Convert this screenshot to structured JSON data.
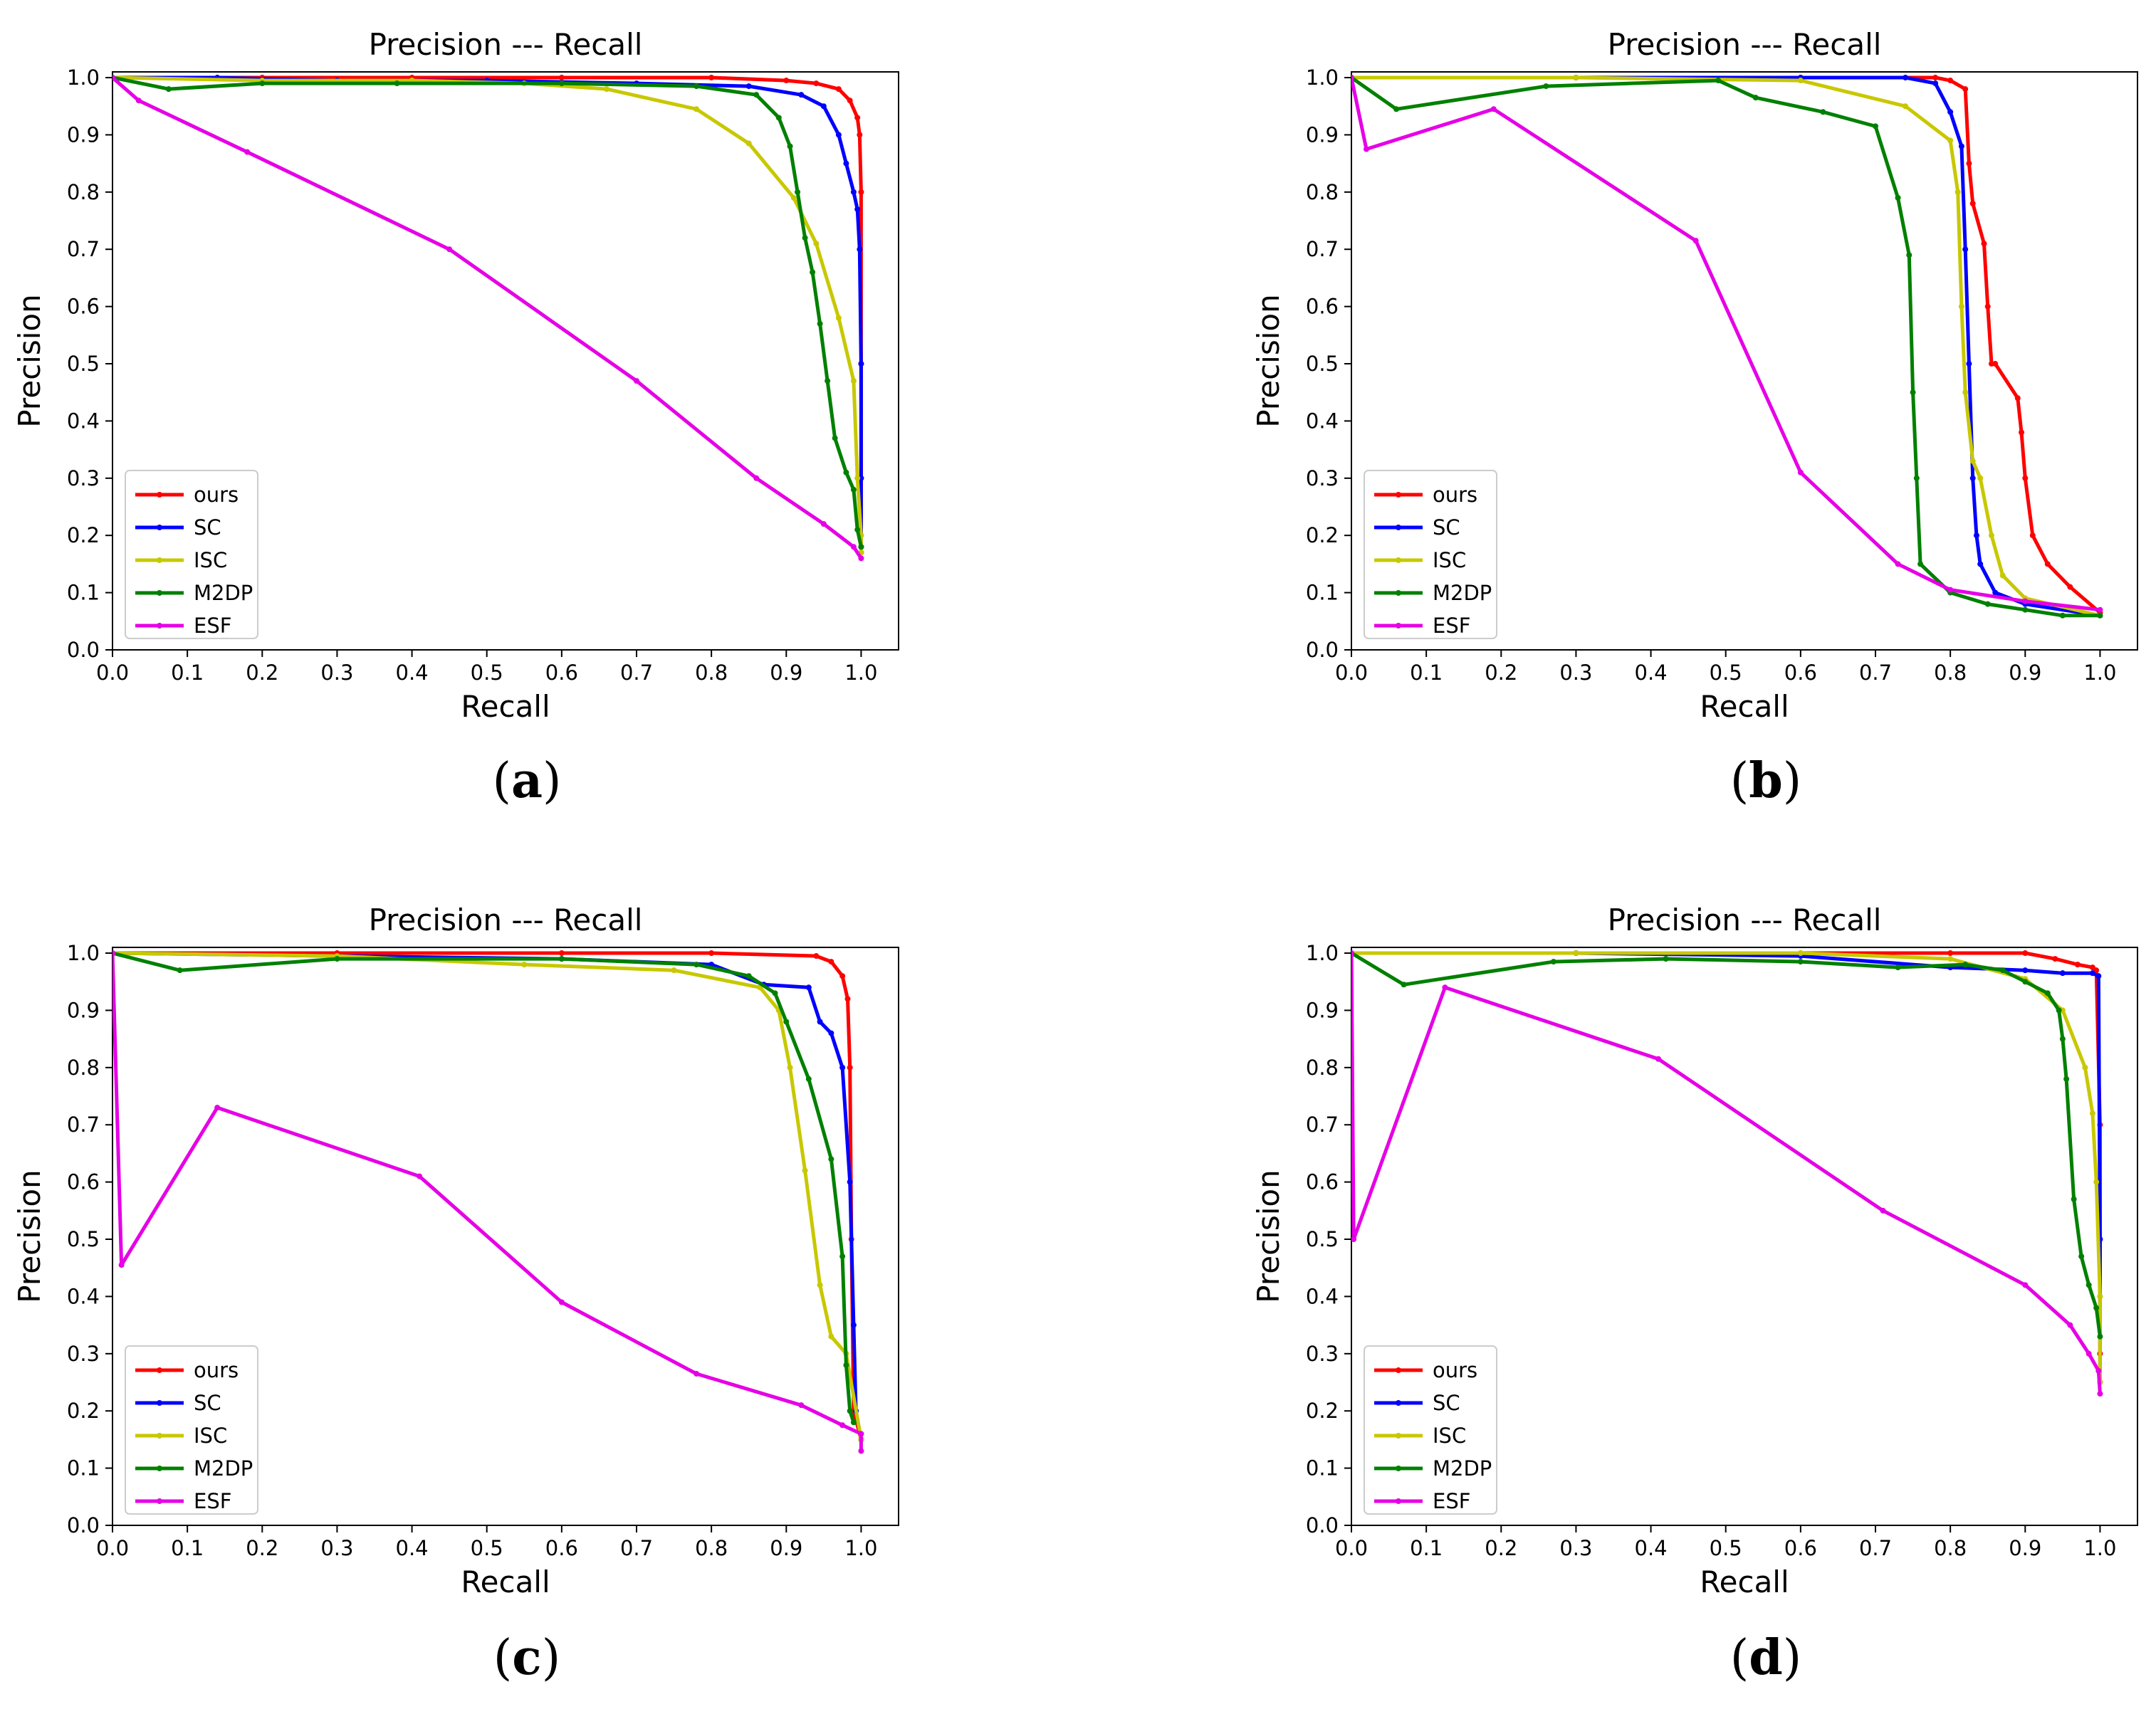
{
  "figure": {
    "caption_open": "(",
    "caption_close": ")"
  },
  "chart_data": [
    {
      "type": "line",
      "panel": "a",
      "title": "Precision --- Recall",
      "xlabel": "Recall",
      "ylabel": "Precision",
      "xlim": [
        0,
        1.05
      ],
      "ylim": [
        0,
        1.01
      ],
      "xticks": [
        "0.0",
        "0.1",
        "0.2",
        "0.3",
        "0.4",
        "0.5",
        "0.6",
        "0.7",
        "0.8",
        "0.9",
        "1.0"
      ],
      "yticks": [
        "0.0",
        "0.1",
        "0.2",
        "0.3",
        "0.4",
        "0.5",
        "0.6",
        "0.7",
        "0.8",
        "0.9",
        "1.0"
      ],
      "legend_position": "lower-left",
      "series": [
        {
          "name": "ours",
          "color": "#ff0000",
          "x": [
            0,
            0.2,
            0.4,
            0.6,
            0.8,
            0.9,
            0.94,
            0.97,
            0.985,
            0.995,
            0.998,
            1.0,
            1.0,
            1.0
          ],
          "y": [
            1.0,
            1.0,
            1.0,
            1.0,
            1.0,
            0.995,
            0.99,
            0.98,
            0.96,
            0.93,
            0.9,
            0.8,
            0.5,
            0.17
          ]
        },
        {
          "name": "SC",
          "color": "#0000ff",
          "x": [
            0,
            0.14,
            0.3,
            0.5,
            0.7,
            0.85,
            0.92,
            0.95,
            0.97,
            0.98,
            0.99,
            0.995,
            0.998,
            1.0,
            1.0,
            1.0
          ],
          "y": [
            1.0,
            1.0,
            0.995,
            0.995,
            0.99,
            0.985,
            0.97,
            0.95,
            0.9,
            0.85,
            0.8,
            0.77,
            0.7,
            0.5,
            0.3,
            0.18
          ]
        },
        {
          "name": "ISC",
          "color": "#c8c800",
          "x": [
            0,
            0.2,
            0.4,
            0.55,
            0.66,
            0.78,
            0.85,
            0.91,
            0.94,
            0.97,
            0.99,
            0.995,
            1.0,
            1.0
          ],
          "y": [
            1.0,
            0.995,
            0.995,
            0.99,
            0.98,
            0.945,
            0.885,
            0.79,
            0.71,
            0.58,
            0.47,
            0.3,
            0.2,
            0.17
          ]
        },
        {
          "name": "M2DP",
          "color": "#008000",
          "x": [
            0,
            0.075,
            0.2,
            0.38,
            0.6,
            0.78,
            0.86,
            0.89,
            0.905,
            0.915,
            0.925,
            0.935,
            0.945,
            0.955,
            0.965,
            0.98,
            0.99,
            0.995,
            1.0
          ],
          "y": [
            1.0,
            0.98,
            0.99,
            0.99,
            0.99,
            0.985,
            0.97,
            0.93,
            0.88,
            0.8,
            0.72,
            0.66,
            0.57,
            0.47,
            0.37,
            0.31,
            0.28,
            0.21,
            0.18
          ]
        },
        {
          "name": "ESF",
          "color": "#e600e6",
          "x": [
            0,
            0.035,
            0.18,
            0.45,
            0.7,
            0.86,
            0.95,
            0.99,
            1.0
          ],
          "y": [
            1.0,
            0.96,
            0.87,
            0.7,
            0.47,
            0.3,
            0.22,
            0.18,
            0.16
          ]
        }
      ]
    },
    {
      "type": "line",
      "panel": "b",
      "title": "Precision --- Recall",
      "xlabel": "Recall",
      "ylabel": "Precision",
      "xlim": [
        0,
        1.05
      ],
      "ylim": [
        0,
        1.01
      ],
      "xticks": [
        "0.0",
        "0.1",
        "0.2",
        "0.3",
        "0.4",
        "0.5",
        "0.6",
        "0.7",
        "0.8",
        "0.9",
        "1.0"
      ],
      "yticks": [
        "0.0",
        "0.1",
        "0.2",
        "0.3",
        "0.4",
        "0.5",
        "0.6",
        "0.7",
        "0.8",
        "0.9",
        "1.0"
      ],
      "legend_position": "lower-left",
      "series": [
        {
          "name": "ours",
          "color": "#ff0000",
          "x": [
            0,
            0.3,
            0.6,
            0.78,
            0.8,
            0.82,
            0.825,
            0.83,
            0.845,
            0.85,
            0.855,
            0.86,
            0.89,
            0.895,
            0.9,
            0.91,
            0.93,
            0.96,
            1.0
          ],
          "y": [
            1.0,
            1.0,
            1.0,
            1.0,
            0.995,
            0.98,
            0.85,
            0.78,
            0.71,
            0.6,
            0.5,
            0.5,
            0.44,
            0.38,
            0.3,
            0.2,
            0.15,
            0.11,
            0.065
          ]
        },
        {
          "name": "SC",
          "color": "#0000ff",
          "x": [
            0,
            0.3,
            0.6,
            0.74,
            0.78,
            0.8,
            0.815,
            0.82,
            0.825,
            0.83,
            0.835,
            0.84,
            0.86,
            0.9,
            1.0
          ],
          "y": [
            1.0,
            1.0,
            1.0,
            1.0,
            0.99,
            0.94,
            0.88,
            0.7,
            0.5,
            0.3,
            0.2,
            0.15,
            0.1,
            0.08,
            0.06
          ]
        },
        {
          "name": "ISC",
          "color": "#c8c800",
          "x": [
            0,
            0.3,
            0.6,
            0.74,
            0.8,
            0.81,
            0.815,
            0.82,
            0.83,
            0.84,
            0.855,
            0.87,
            0.9,
            1.0
          ],
          "y": [
            1.0,
            1.0,
            0.995,
            0.95,
            0.89,
            0.8,
            0.6,
            0.45,
            0.33,
            0.3,
            0.2,
            0.13,
            0.09,
            0.06
          ]
        },
        {
          "name": "M2DP",
          "color": "#008000",
          "x": [
            0,
            0.06,
            0.26,
            0.49,
            0.54,
            0.63,
            0.7,
            0.73,
            0.745,
            0.75,
            0.755,
            0.76,
            0.8,
            0.85,
            0.9,
            0.95,
            1.0
          ],
          "y": [
            1.0,
            0.945,
            0.985,
            0.995,
            0.965,
            0.94,
            0.915,
            0.79,
            0.69,
            0.45,
            0.3,
            0.15,
            0.1,
            0.08,
            0.07,
            0.06,
            0.06
          ]
        },
        {
          "name": "ESF",
          "color": "#e600e6",
          "x": [
            0,
            0.02,
            0.19,
            0.46,
            0.6,
            0.73,
            0.8,
            0.9,
            1.0
          ],
          "y": [
            1.0,
            0.875,
            0.945,
            0.715,
            0.31,
            0.15,
            0.105,
            0.085,
            0.07
          ]
        }
      ]
    },
    {
      "type": "line",
      "panel": "c",
      "title": "Precision --- Recall",
      "xlabel": "Recall",
      "ylabel": "Precision",
      "xlim": [
        0,
        1.05
      ],
      "ylim": [
        0,
        1.01
      ],
      "xticks": [
        "0.0",
        "0.1",
        "0.2",
        "0.3",
        "0.4",
        "0.5",
        "0.6",
        "0.7",
        "0.8",
        "0.9",
        "1.0"
      ],
      "yticks": [
        "0.0",
        "0.1",
        "0.2",
        "0.3",
        "0.4",
        "0.5",
        "0.6",
        "0.7",
        "0.8",
        "0.9",
        "1.0"
      ],
      "legend_position": "lower-left",
      "series": [
        {
          "name": "ours",
          "color": "#ff0000",
          "x": [
            0,
            0.3,
            0.6,
            0.8,
            0.94,
            0.96,
            0.975,
            0.982,
            0.985,
            0.987,
            0.99,
            1.0
          ],
          "y": [
            1.0,
            1.0,
            1.0,
            1.0,
            0.995,
            0.985,
            0.96,
            0.92,
            0.8,
            0.5,
            0.2,
            0.15
          ]
        },
        {
          "name": "SC",
          "color": "#0000ff",
          "x": [
            0,
            0.3,
            0.6,
            0.8,
            0.87,
            0.93,
            0.945,
            0.96,
            0.975,
            0.985,
            0.99,
            0.993,
            1.0
          ],
          "y": [
            1.0,
            0.995,
            0.99,
            0.98,
            0.945,
            0.94,
            0.88,
            0.86,
            0.8,
            0.6,
            0.35,
            0.2,
            0.15
          ]
        },
        {
          "name": "ISC",
          "color": "#c8c800",
          "x": [
            0,
            0.3,
            0.55,
            0.75,
            0.865,
            0.89,
            0.905,
            0.925,
            0.945,
            0.96,
            0.98,
            1.0
          ],
          "y": [
            1.0,
            0.995,
            0.98,
            0.97,
            0.94,
            0.9,
            0.8,
            0.62,
            0.42,
            0.33,
            0.3,
            0.15
          ]
        },
        {
          "name": "M2DP",
          "color": "#008000",
          "x": [
            0,
            0.09,
            0.3,
            0.6,
            0.78,
            0.85,
            0.885,
            0.9,
            0.93,
            0.96,
            0.975,
            0.98,
            0.985,
            0.99
          ],
          "y": [
            1.0,
            0.97,
            0.99,
            0.99,
            0.98,
            0.96,
            0.93,
            0.88,
            0.78,
            0.64,
            0.47,
            0.28,
            0.2,
            0.18
          ]
        },
        {
          "name": "ESF",
          "color": "#e600e6",
          "x": [
            0,
            0.012,
            0.14,
            0.41,
            0.6,
            0.78,
            0.92,
            0.975,
            1.0,
            1.0
          ],
          "y": [
            1.0,
            0.455,
            0.73,
            0.61,
            0.39,
            0.265,
            0.21,
            0.175,
            0.16,
            0.13
          ]
        }
      ]
    },
    {
      "type": "line",
      "panel": "d",
      "title": "Precision --- Recall",
      "xlabel": "Recall",
      "ylabel": "Precision",
      "xlim": [
        0,
        1.05
      ],
      "ylim": [
        0,
        1.01
      ],
      "xticks": [
        "0.0",
        "0.1",
        "0.2",
        "0.3",
        "0.4",
        "0.5",
        "0.6",
        "0.7",
        "0.8",
        "0.9",
        "1.0"
      ],
      "yticks": [
        "0.0",
        "0.1",
        "0.2",
        "0.3",
        "0.4",
        "0.5",
        "0.6",
        "0.7",
        "0.8",
        "0.9",
        "1.0"
      ],
      "legend_position": "lower-left",
      "series": [
        {
          "name": "ours",
          "color": "#ff0000",
          "x": [
            0,
            0.3,
            0.6,
            0.8,
            0.9,
            0.94,
            0.97,
            0.99,
            0.995,
            1.0,
            1.0
          ],
          "y": [
            1.0,
            1.0,
            1.0,
            1.0,
            1.0,
            0.99,
            0.98,
            0.975,
            0.97,
            0.7,
            0.3
          ]
        },
        {
          "name": "SC",
          "color": "#0000ff",
          "x": [
            0,
            0.3,
            0.6,
            0.8,
            0.9,
            0.95,
            0.99,
            0.998,
            1.0,
            1.0
          ],
          "y": [
            1.0,
            1.0,
            0.995,
            0.975,
            0.97,
            0.965,
            0.965,
            0.96,
            0.5,
            0.25
          ]
        },
        {
          "name": "ISC",
          "color": "#c8c800",
          "x": [
            0,
            0.3,
            0.6,
            0.8,
            0.9,
            0.95,
            0.98,
            0.99,
            0.995,
            1.0,
            1.0
          ],
          "y": [
            1.0,
            1.0,
            1.0,
            0.99,
            0.955,
            0.9,
            0.8,
            0.72,
            0.6,
            0.4,
            0.25
          ]
        },
        {
          "name": "M2DP",
          "color": "#008000",
          "x": [
            0,
            0.07,
            0.27,
            0.42,
            0.6,
            0.73,
            0.82,
            0.87,
            0.9,
            0.93,
            0.945,
            0.95,
            0.955,
            0.965,
            0.975,
            0.985,
            0.995,
            1.0
          ],
          "y": [
            1.0,
            0.945,
            0.985,
            0.99,
            0.985,
            0.975,
            0.98,
            0.97,
            0.95,
            0.93,
            0.9,
            0.85,
            0.78,
            0.57,
            0.47,
            0.42,
            0.38,
            0.33
          ]
        },
        {
          "name": "ESF",
          "color": "#e600e6",
          "x": [
            0,
            0.003,
            0.125,
            0.41,
            0.71,
            0.9,
            0.96,
            0.985,
            0.998,
            1.0
          ],
          "y": [
            1.0,
            0.5,
            0.94,
            0.815,
            0.55,
            0.42,
            0.35,
            0.3,
            0.27,
            0.23
          ]
        }
      ]
    }
  ]
}
